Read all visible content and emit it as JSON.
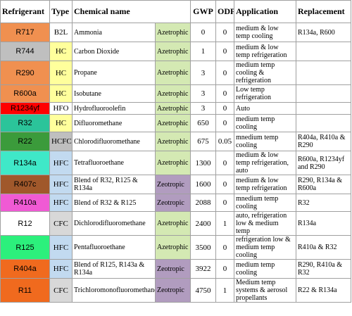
{
  "headers": {
    "refrigerant": "Refrigerant",
    "type": "Type",
    "chemical": "Chemical name",
    "gwp": "GWP",
    "odp": "ODP",
    "application": "Application",
    "replacement": "Replacement"
  },
  "colors": {
    "azeotropic": "#d4e9b3",
    "zeotropic": "#b19cbf",
    "type_yellow": "#ffff9c",
    "type_blue": "#c2daf0",
    "type_gray": "#d8d8d8"
  },
  "rows": [
    {
      "refrigerant": "R717",
      "ref_color": "#f09050",
      "type": "B2L",
      "type_color": "#ffffff",
      "chemical": "Ammonia",
      "behavior": "Azetrophic",
      "gwp": "0",
      "odp": "0",
      "application": "medium & low temp cooling",
      "replacement": "R134a, R600"
    },
    {
      "refrigerant": "R744",
      "ref_color": "#bfbfbf",
      "type": "HC",
      "type_color": "#ffff9c",
      "chemical": "Carbon Dioxide",
      "behavior": "Azetrophic",
      "gwp": "1",
      "odp": "0",
      "application": "medium & low temp refrigeration",
      "replacement": ""
    },
    {
      "refrigerant": "R290",
      "ref_color": "#f09050",
      "type": "HC",
      "type_color": "#ffff9c",
      "chemical": "Propane",
      "behavior": "Azetrophic",
      "gwp": "3",
      "odp": "0",
      "application": "medium temp cooling & refrigeration",
      "replacement": ""
    },
    {
      "refrigerant": "R600a",
      "ref_color": "#f09050",
      "type": "HC",
      "type_color": "#ffff9c",
      "chemical": "Isobutane",
      "behavior": "Azetrophic",
      "gwp": "3",
      "odp": "0",
      "application": "Low temp refrigeration",
      "replacement": ""
    },
    {
      "refrigerant": "R1234yf",
      "ref_color": "#ff0000",
      "type": "HFO",
      "type_color": "#ffffff",
      "chemical": "Hydrofluoroolefin",
      "behavior": "Azetrophic",
      "gwp": "3",
      "odp": "0",
      "application": "Auto",
      "replacement": ""
    },
    {
      "refrigerant": "R32",
      "ref_color": "#2bc49a",
      "type": "HC",
      "type_color": "#ffff9c",
      "chemical": "Difluoromethane",
      "behavior": "Azetrophic",
      "gwp": "650",
      "odp": "0",
      "application": "medium temp cooling",
      "replacement": ""
    },
    {
      "refrigerant": "R22",
      "ref_color": "#3b9b3b",
      "type": "HCFC",
      "type_color": "#bfbfbf",
      "chemical": "Chlorodifluoromethane",
      "behavior": "Azetrophic",
      "gwp": "675",
      "odp": "0.05",
      "application": "mnedium temp cooling",
      "replacement": "R404a, R410a & R290"
    },
    {
      "refrigerant": "R134a",
      "ref_color": "#3fe8c8",
      "type": "HFC",
      "type_color": "#c2daf0",
      "chemical": "Tetrafluoroethane",
      "behavior": "Azetrophic",
      "gwp": "1300",
      "odp": "0",
      "application": "medium & low temp refrigeration, auto",
      "replacement": "R600a, R1234yf and R290"
    },
    {
      "refrigerant": "R407c",
      "ref_color": "#a0582b",
      "type": "HFC",
      "type_color": "#c2daf0",
      "chemical": "Blend of R32, R125 & R134a",
      "behavior": "Zeotropic",
      "gwp": "1600",
      "odp": "0",
      "application": "medium & low temp refrigeration",
      "replacement": "R290, R134a & R600a"
    },
    {
      "refrigerant": "R410a",
      "ref_color": "#f05ad4",
      "type": "HFC",
      "type_color": "#c2daf0",
      "chemical": "Blend of R32 & R125",
      "behavior": "Zeotropic",
      "gwp": "2088",
      "odp": "0",
      "application": "mnedium temp cooling",
      "replacement": "R32"
    },
    {
      "refrigerant": "R12",
      "ref_color": "#ffffff",
      "type": "CFC",
      "type_color": "#d8d8d8",
      "chemical": "Dichlorodifluoromethane",
      "behavior": "Azetrophic",
      "gwp": "2400",
      "odp": "1",
      "application": "auto, refrigeration low & medium temp",
      "replacement": "R134a"
    },
    {
      "refrigerant": "R125",
      "ref_color": "#2cf07c",
      "type": "HFC",
      "type_color": "#c2daf0",
      "chemical": "Pentafluoroethane",
      "behavior": "Azetrophic",
      "gwp": "3500",
      "odp": "0",
      "application": "refrigeration low & medium temp cooling",
      "replacement": "R410a & R32"
    },
    {
      "refrigerant": "R404a",
      "ref_color": "#f06a1e",
      "type": "HFC",
      "type_color": "#c2daf0",
      "chemical": "Blend of R125, R143a & R134a",
      "behavior": "Zeotropic",
      "gwp": "3922",
      "odp": "0",
      "application": "medium temp cooling",
      "replacement": "R290, R410a & R32"
    },
    {
      "refrigerant": "R11",
      "ref_color": "#f06a1e",
      "type": "CFC",
      "type_color": "#d8d8d8",
      "chemical": "Trichloromonofluoromethane",
      "behavior": "Zeotropic",
      "gwp": "4750",
      "odp": "1",
      "application": "Medium temp systems & aerosol propellants",
      "replacement": "R22 & R134a"
    }
  ]
}
